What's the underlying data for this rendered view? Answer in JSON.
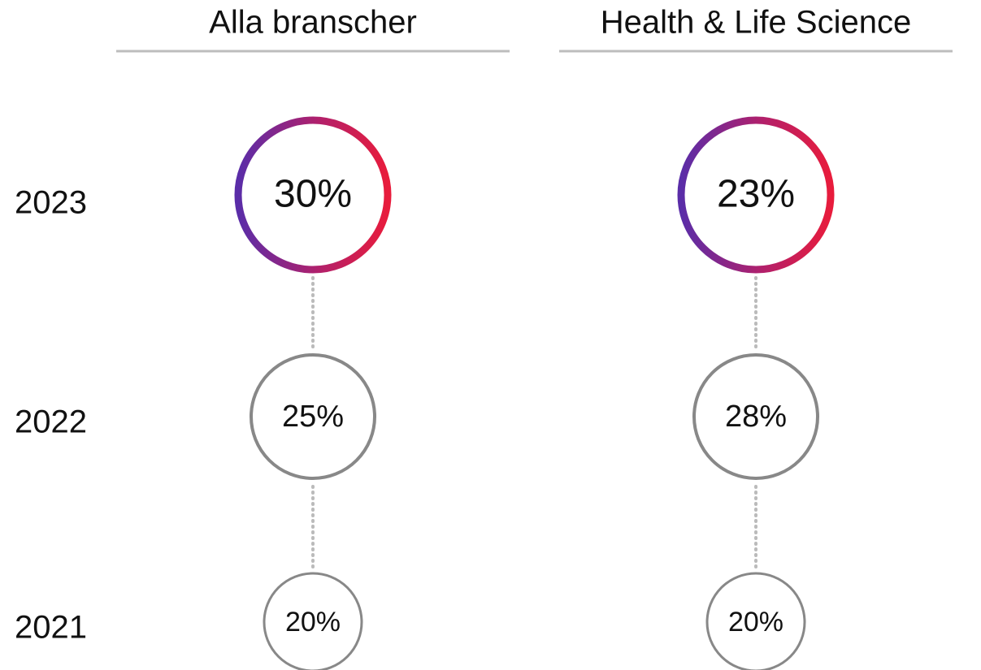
{
  "years": [
    "2023",
    "2022",
    "2021"
  ],
  "columns": [
    {
      "title": "Alla branscher",
      "values": [
        "30%",
        "25%",
        "20%"
      ]
    },
    {
      "title": "Health & Life Science",
      "values": [
        "23%",
        "28%",
        "20%"
      ]
    }
  ]
}
